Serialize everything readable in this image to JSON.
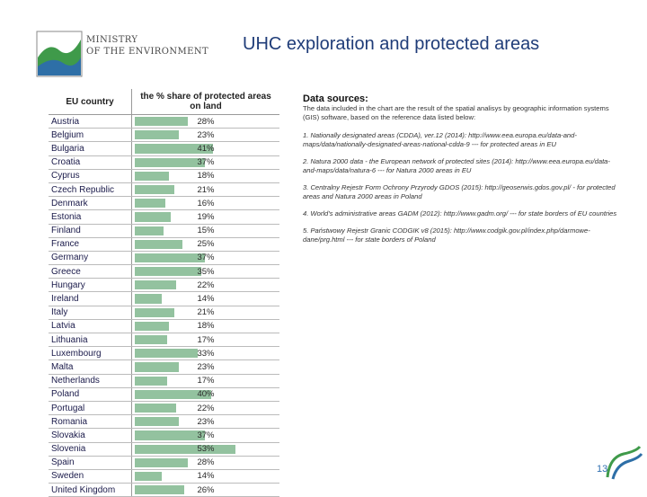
{
  "header": {
    "logo_line1": "MINISTRY",
    "logo_line2": "OF THE ENVIRONMENT",
    "title": "UHC exploration and protected areas"
  },
  "table": {
    "col_country": "EU country",
    "col_share": "the % share of protected areas on land",
    "rows": [
      {
        "country": "Austria",
        "pct": "28%",
        "value": 28
      },
      {
        "country": "Belgium",
        "pct": "23%",
        "value": 23
      },
      {
        "country": "Bulgaria",
        "pct": "41%",
        "value": 41
      },
      {
        "country": "Croatia",
        "pct": "37%",
        "value": 37
      },
      {
        "country": "Cyprus",
        "pct": "18%",
        "value": 18
      },
      {
        "country": "Czech Republic",
        "pct": "21%",
        "value": 21
      },
      {
        "country": "Denmark",
        "pct": "16%",
        "value": 16
      },
      {
        "country": "Estonia",
        "pct": "19%",
        "value": 19
      },
      {
        "country": "Finland",
        "pct": "15%",
        "value": 15
      },
      {
        "country": "France",
        "pct": "25%",
        "value": 25
      },
      {
        "country": "Germany",
        "pct": "37%",
        "value": 37
      },
      {
        "country": "Greece",
        "pct": "35%",
        "value": 35
      },
      {
        "country": "Hungary",
        "pct": "22%",
        "value": 22
      },
      {
        "country": "Ireland",
        "pct": "14%",
        "value": 14
      },
      {
        "country": "Italy",
        "pct": "21%",
        "value": 21
      },
      {
        "country": "Latvia",
        "pct": "18%",
        "value": 18
      },
      {
        "country": "Lithuania",
        "pct": "17%",
        "value": 17
      },
      {
        "country": "Luxembourg",
        "pct": "33%",
        "value": 33
      },
      {
        "country": "Malta",
        "pct": "23%",
        "value": 23
      },
      {
        "country": "Netherlands",
        "pct": "17%",
        "value": 17
      },
      {
        "country": "Poland",
        "pct": "40%",
        "value": 40
      },
      {
        "country": "Portugal",
        "pct": "22%",
        "value": 22
      },
      {
        "country": "Romania",
        "pct": "23%",
        "value": 23
      },
      {
        "country": "Slovakia",
        "pct": "37%",
        "value": 37
      },
      {
        "country": "Slovenia",
        "pct": "53%",
        "value": 53
      },
      {
        "country": "Spain",
        "pct": "28%",
        "value": 28
      },
      {
        "country": "Sweden",
        "pct": "14%",
        "value": 14
      },
      {
        "country": "United Kingdom",
        "pct": "26%",
        "value": 26
      }
    ]
  },
  "sources": {
    "heading": "Data sources:",
    "intro": "The data included in the chart are the result of the spatial analisys by geographic information systems (GIS) software, based on the reference data listed below:",
    "items": [
      "1.  Nationally designated areas (CDDA), ver.12 (2014): http://www.eea.europa.eu/data-and-maps/data/nationally-designated-areas-national-cdda-9 --- for protected areas in EU",
      "2.  Natura 2000 data - the European network of protected sites (2014): http://www.eea.europa.eu/data-and-maps/data/natura-6 --- for Natura 2000 areas in EU",
      "3. Centralny Rejestr Form Ochrony Przyrody GDOS (2015): http://geoserwis.gdos.gov.pl/ - for protected areas and Natura 2000 areas in Poland",
      "4. World's administrative areas GADM (2012): http://www.gadm.org/ --- for state borders of EU countries",
      "5. Państwowy Rejestr Granic CODGIK v8 (2015): http://www.codgik.gov.pl/index.php/darmowe-dane/prg.html --- for state borders of Poland"
    ]
  },
  "page_number": "13",
  "colors": {
    "title": "#1f3c78",
    "bar": "#6fae7f",
    "logo_green": "#3f9a4a",
    "logo_blue": "#2e6fa7"
  }
}
